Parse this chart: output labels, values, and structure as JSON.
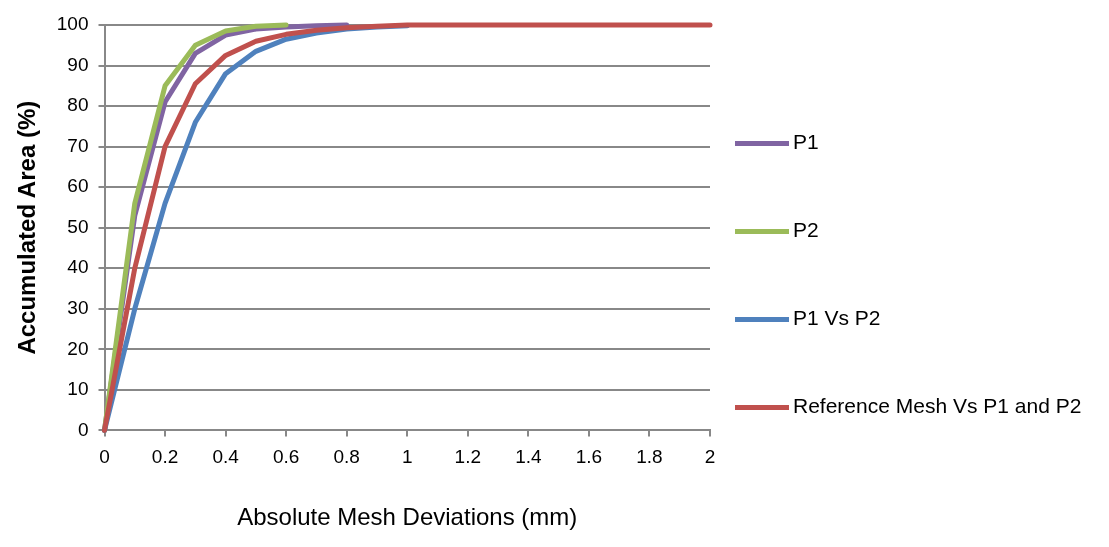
{
  "chart_data": {
    "type": "line",
    "xlabel": "Absolute Mesh Deviations (mm)",
    "ylabel": "Accumulated Area (%)",
    "x": [
      0,
      0.1,
      0.2,
      0.3,
      0.4,
      0.5,
      0.6,
      0.7,
      0.8,
      0.9,
      1,
      1.1,
      1.2,
      1.3,
      1.4,
      1.5,
      1.6,
      1.7,
      1.8,
      1.9,
      2
    ],
    "series": [
      {
        "name": "P1",
        "color": "#8064a2",
        "values": [
          0,
          53,
          81,
          93,
          97.5,
          99,
          99.5,
          99.8,
          100,
          null,
          null,
          null,
          null,
          null,
          null,
          null,
          null,
          null,
          null,
          null,
          null
        ]
      },
      {
        "name": "P2",
        "color": "#9bbb59",
        "values": [
          0,
          56,
          85,
          95,
          98.5,
          99.7,
          100,
          null,
          null,
          null,
          null,
          null,
          null,
          null,
          null,
          null,
          null,
          null,
          null,
          null,
          null
        ]
      },
      {
        "name": "P1 Vs P2",
        "color": "#4f81bd",
        "values": [
          0,
          30,
          56,
          76,
          88,
          93.5,
          96.5,
          98,
          99,
          99.5,
          99.8,
          null,
          null,
          null,
          null,
          null,
          null,
          null,
          null,
          null,
          null
        ]
      },
      {
        "name": "Reference Mesh Vs P1 and P2",
        "color": "#c0504d",
        "values": [
          0,
          40,
          70,
          85.5,
          92.5,
          96,
          97.7,
          98.7,
          99.3,
          99.7,
          100,
          100,
          100,
          100,
          100,
          100,
          100,
          100,
          100,
          100,
          100
        ]
      }
    ],
    "xlim": [
      0,
      2
    ],
    "xticks": [
      0,
      0.2,
      0.4,
      0.6,
      0.8,
      1,
      1.2,
      1.4,
      1.6,
      1.8,
      2
    ],
    "ylim": [
      0,
      100
    ],
    "yticks": [
      0,
      10,
      20,
      30,
      40,
      50,
      60,
      70,
      80,
      90,
      100
    ],
    "grid": "y",
    "legend": "right",
    "marker": "none"
  }
}
